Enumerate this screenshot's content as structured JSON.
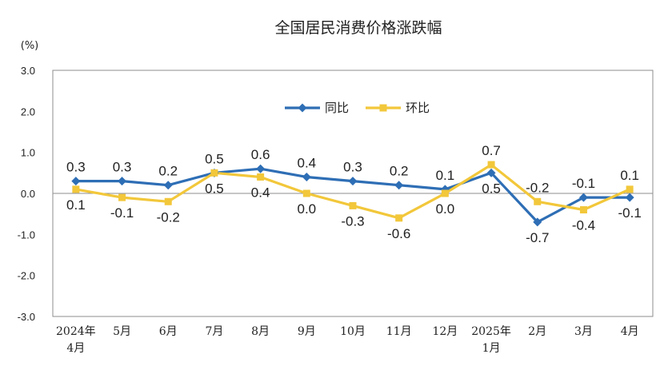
{
  "chart_data": {
    "type": "line",
    "title": "全国居民消费价格涨跌幅",
    "unit_label": "(%)",
    "categories": [
      [
        "2024年",
        "4月"
      ],
      [
        "5月"
      ],
      [
        "6月"
      ],
      [
        "7月"
      ],
      [
        "8月"
      ],
      [
        "9月"
      ],
      [
        "10月"
      ],
      [
        "11月"
      ],
      [
        "12月"
      ],
      [
        "2025年",
        "1月"
      ],
      [
        "2月"
      ],
      [
        "3月"
      ],
      [
        "4月"
      ]
    ],
    "ylim": [
      -3.0,
      3.0
    ],
    "yticks": [
      "3.0",
      "2.0",
      "1.0",
      "0.0",
      "-1.0",
      "-2.0",
      "-3.0"
    ],
    "series": [
      {
        "name": "同比",
        "color": "#2e6eb5",
        "marker": "diamond",
        "values": [
          0.3,
          0.3,
          0.2,
          0.5,
          0.6,
          0.4,
          0.3,
          0.2,
          0.1,
          0.5,
          -0.7,
          -0.1,
          -0.1
        ],
        "labels": [
          "0.3",
          "0.3",
          "0.2",
          "0.5",
          "0.6",
          "0.4",
          "0.3",
          "0.2",
          "0.1",
          "0.5",
          "-0.7",
          "-0.1",
          "-0.1"
        ],
        "label_side": [
          "above",
          "above",
          "above",
          "above",
          "above",
          "above",
          "above",
          "above",
          "above",
          "below",
          "below",
          "above",
          "below"
        ]
      },
      {
        "name": "环比",
        "color": "#f2c73a",
        "marker": "square",
        "values": [
          0.1,
          -0.1,
          -0.2,
          0.5,
          0.4,
          0.0,
          -0.3,
          -0.6,
          0.0,
          0.7,
          -0.2,
          -0.4,
          0.1
        ],
        "labels": [
          "0.1",
          "-0.1",
          "-0.2",
          "0.5",
          "0.4",
          "0.0",
          "-0.3",
          "-0.6",
          "0.0",
          "0.7",
          "-0.2",
          "-0.4",
          "0.1"
        ],
        "label_side": [
          "below",
          "below",
          "below",
          "below",
          "below",
          "below",
          "below",
          "below",
          "below",
          "above",
          "above",
          "below",
          "above"
        ]
      }
    ],
    "legend_position": "top-center",
    "grid": false
  }
}
